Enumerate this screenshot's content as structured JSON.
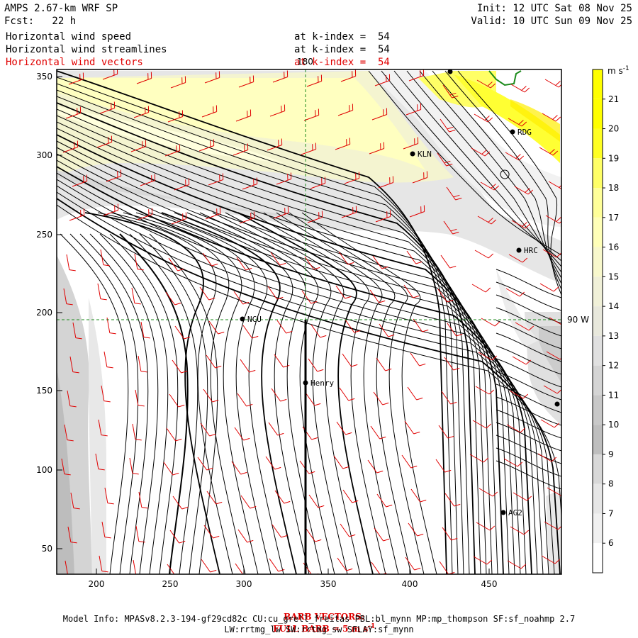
{
  "header": {
    "title": "AMPS 2.67-km WRF SP",
    "forecast": "Fcst:   22 h",
    "init": "Init: 12 UTC Sat 08 Nov 25",
    "valid": "Valid: 10 UTC Sun 09 Nov 25"
  },
  "fields": [
    {
      "name": "Horizontal wind speed",
      "level": "at k-index =  54",
      "color": "#000000"
    },
    {
      "name": "Horizontal wind streamlines",
      "level": "at k-index =  54",
      "color": "#000000"
    },
    {
      "name": "Horizontal wind vectors",
      "level": "at k-index =  54",
      "color": "#e00000"
    }
  ],
  "map": {
    "x_ticks": [
      "200",
      "250",
      "300",
      "350",
      "400",
      "450"
    ],
    "y_ticks": [
      "350",
      "300",
      "250",
      "200",
      "150",
      "100",
      "50"
    ],
    "meridian_label": "180",
    "parallel_label": "90 W",
    "stations": [
      {
        "name": "RDG"
      },
      {
        "name": "KLN"
      },
      {
        "name": "HRC"
      },
      {
        "name": "NCU"
      },
      {
        "name": "Henry"
      },
      {
        "name": "AG2"
      },
      {
        "name": ""
      },
      {
        "name": ""
      }
    ]
  },
  "colorbar": {
    "unit": "m s",
    "unit_exp": "-1",
    "levels": [
      "21",
      "20",
      "19",
      "18",
      "17",
      "16",
      "15",
      "14",
      "13",
      "12",
      "11",
      "10",
      "9",
      "8",
      "7",
      "6"
    ],
    "colors": [
      "#ffff00",
      "#ffff00",
      "#ffff22",
      "#ffff66",
      "#ffff99",
      "#ffffb8",
      "#f8f8cc",
      "#f0f0d8",
      "#e8e8dc",
      "#e0e0e0",
      "#d4d4d4",
      "#c8c8c8",
      "#bebebe",
      "#d8d8d8",
      "#e6e6e6",
      "#f0f0f0",
      "#ffffff"
    ]
  },
  "footer": {
    "barb_label": "BARB VECTORS:",
    "barb_value": "FULL BARB = 5 m s",
    "barb_exp": "-1",
    "model_info": "Model Info: MPASv8.2.3-194-gf29cd82c CU:cu_grell_freitas PBL:bl_mynn MP:mp_thompson SF:sf_noahmp 2.7",
    "model_info2": "LW:rrtmg_lw SW:rrtmg_sw SFLAY:sf_mynn"
  }
}
